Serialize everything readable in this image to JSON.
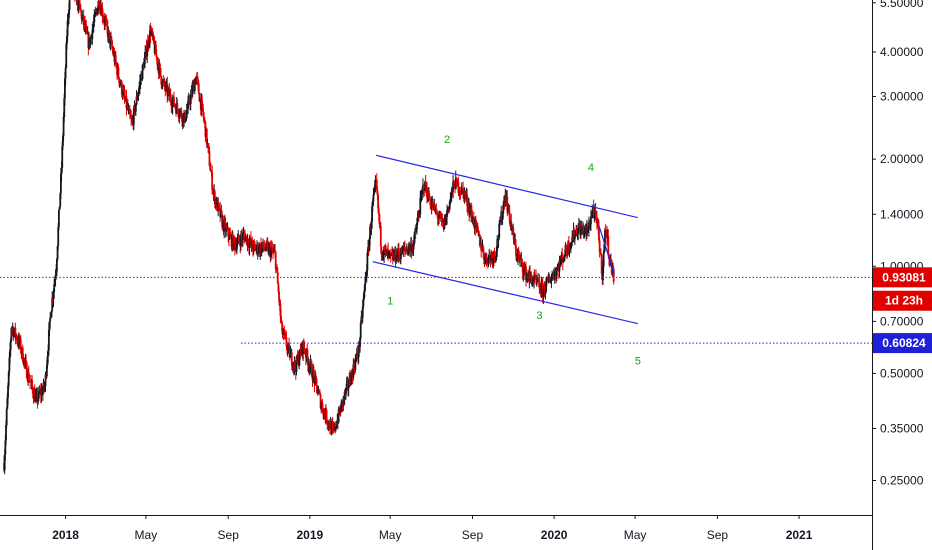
{
  "chart_data": {
    "type": "candlestick",
    "y_scale": "log",
    "ylim": [
      0.2,
      5.6
    ],
    "xlim": [
      "2017-09-25",
      "2021-04-20"
    ],
    "y_ticks": [
      {
        "value": 5.5,
        "label": "5.50000"
      },
      {
        "value": 4.0,
        "label": "4.00000"
      },
      {
        "value": 3.0,
        "label": "3.00000"
      },
      {
        "value": 2.0,
        "label": "2.00000"
      },
      {
        "value": 1.4,
        "label": "1.40000"
      },
      {
        "value": 1.0,
        "label": "1.00000"
      },
      {
        "value": 0.7,
        "label": "0.70000"
      },
      {
        "value": 0.5,
        "label": "0.50000"
      },
      {
        "value": 0.35,
        "label": "0.35000"
      },
      {
        "value": 0.25,
        "label": "0.25000"
      }
    ],
    "x_ticks": [
      {
        "date": "2018-01-01",
        "label": "2018",
        "year": true
      },
      {
        "date": "2018-05-01",
        "label": "May",
        "year": false
      },
      {
        "date": "2018-09-01",
        "label": "Sep",
        "year": false
      },
      {
        "date": "2019-01-01",
        "label": "2019",
        "year": true
      },
      {
        "date": "2019-05-01",
        "label": "May",
        "year": false
      },
      {
        "date": "2019-09-01",
        "label": "Sep",
        "year": false
      },
      {
        "date": "2020-01-01",
        "label": "2020",
        "year": true
      },
      {
        "date": "2020-05-01",
        "label": "May",
        "year": false
      },
      {
        "date": "2020-09-01",
        "label": "Sep",
        "year": false
      },
      {
        "date": "2021-01-01",
        "label": "2021",
        "year": true
      }
    ],
    "price_path": [
      [
        "2017-10-01",
        0.28
      ],
      [
        "2017-10-12",
        0.68
      ],
      [
        "2017-10-25",
        0.6
      ],
      [
        "2017-11-05",
        0.5
      ],
      [
        "2017-11-18",
        0.42
      ],
      [
        "2017-12-01",
        0.46
      ],
      [
        "2017-12-10",
        0.75
      ],
      [
        "2017-12-18",
        1.0
      ],
      [
        "2017-12-26",
        1.9
      ],
      [
        "2018-01-03",
        4.5
      ],
      [
        "2018-01-08",
        6.2
      ],
      [
        "2018-01-20",
        5.5
      ],
      [
        "2018-02-05",
        4.2
      ],
      [
        "2018-02-20",
        5.6
      ],
      [
        "2018-03-10",
        4.2
      ],
      [
        "2018-03-25",
        3.2
      ],
      [
        "2018-04-10",
        2.5
      ],
      [
        "2018-04-25",
        3.5
      ],
      [
        "2018-05-08",
        4.6
      ],
      [
        "2018-05-25",
        3.3
      ],
      [
        "2018-06-10",
        2.9
      ],
      [
        "2018-06-28",
        2.6
      ],
      [
        "2018-07-15",
        3.4
      ],
      [
        "2018-07-28",
        2.5
      ],
      [
        "2018-08-10",
        1.6
      ],
      [
        "2018-08-25",
        1.3
      ],
      [
        "2018-09-10",
        1.15
      ],
      [
        "2018-09-25",
        1.22
      ],
      [
        "2018-10-10",
        1.12
      ],
      [
        "2018-10-25",
        1.13
      ],
      [
        "2018-11-10",
        1.08
      ],
      [
        "2018-11-20",
        0.66
      ],
      [
        "2018-11-30",
        0.58
      ],
      [
        "2018-12-10",
        0.52
      ],
      [
        "2018-12-22",
        0.6
      ],
      [
        "2019-01-05",
        0.5
      ],
      [
        "2019-01-20",
        0.4
      ],
      [
        "2019-02-05",
        0.34
      ],
      [
        "2019-02-20",
        0.42
      ],
      [
        "2019-03-05",
        0.5
      ],
      [
        "2019-03-15",
        0.58
      ],
      [
        "2019-03-28",
        1.05
      ],
      [
        "2019-04-05",
        1.5
      ],
      [
        "2019-04-10",
        1.7
      ],
      [
        "2019-04-18",
        1.12
      ],
      [
        "2019-05-02",
        1.05
      ],
      [
        "2019-05-20",
        1.1
      ],
      [
        "2019-06-05",
        1.15
      ],
      [
        "2019-06-20",
        1.7
      ],
      [
        "2019-07-05",
        1.45
      ],
      [
        "2019-07-20",
        1.3
      ],
      [
        "2019-08-05",
        1.72
      ],
      [
        "2019-08-20",
        1.6
      ],
      [
        "2019-09-05",
        1.3
      ],
      [
        "2019-09-20",
        1.05
      ],
      [
        "2019-10-05",
        1.08
      ],
      [
        "2019-10-20",
        1.6
      ],
      [
        "2019-11-05",
        1.1
      ],
      [
        "2019-11-20",
        0.95
      ],
      [
        "2019-12-05",
        0.9
      ],
      [
        "2019-12-15",
        0.85
      ],
      [
        "2019-12-25",
        0.92
      ],
      [
        "2020-01-05",
        0.98
      ],
      [
        "2020-01-20",
        1.12
      ],
      [
        "2020-02-05",
        1.28
      ],
      [
        "2020-02-20",
        1.25
      ],
      [
        "2020-02-28",
        1.45
      ],
      [
        "2020-03-06",
        1.3
      ],
      [
        "2020-03-13",
        0.95
      ],
      [
        "2020-03-18",
        1.3
      ],
      [
        "2020-03-24",
        1.05
      ],
      [
        "2020-03-30",
        0.93
      ]
    ],
    "horizontal_lines": [
      {
        "name": "last-price",
        "value": 0.93081,
        "color": "#e00000",
        "style": "dotted",
        "from": "2017-09-25"
      },
      {
        "name": "support",
        "value": 0.60824,
        "color": "#1f1fd6",
        "style": "dotted",
        "from": "2018-09-20"
      }
    ],
    "trend_lines": [
      {
        "name": "channel-upper",
        "p1": [
          "2019-04-10",
          2.05
        ],
        "p2": [
          "2020-05-05",
          1.37
        ]
      },
      {
        "name": "channel-lower",
        "p1": [
          "2019-04-05",
          1.03
        ],
        "p2": [
          "2020-05-05",
          0.69
        ]
      },
      {
        "name": "wave-4-leg",
        "p1": [
          "2020-03-08",
          1.3
        ],
        "p2": [
          "2020-03-31",
          0.95
        ]
      }
    ],
    "wave_labels": [
      {
        "label": "1",
        "date": "2019-05-01",
        "value": 0.78
      },
      {
        "label": "2",
        "date": "2019-07-25",
        "value": 2.22
      },
      {
        "label": "3",
        "date": "2019-12-10",
        "value": 0.71
      },
      {
        "label": "4",
        "date": "2020-02-25",
        "value": 1.85
      },
      {
        "label": "5",
        "date": "2020-05-05",
        "value": 0.53
      }
    ],
    "price_tags": [
      {
        "text": "0.93081",
        "bg": "#e00000",
        "value": 0.93081
      },
      {
        "text": "1d 23h",
        "bg": "#e00000",
        "value": 0.8
      },
      {
        "text": "0.60824",
        "bg": "#1f1fd6",
        "value": 0.60824
      }
    ],
    "colors": {
      "up": "#131722",
      "down": "#e00000",
      "channel": "#2424e8",
      "wave": "#14a814",
      "axis": "#131722"
    }
  }
}
